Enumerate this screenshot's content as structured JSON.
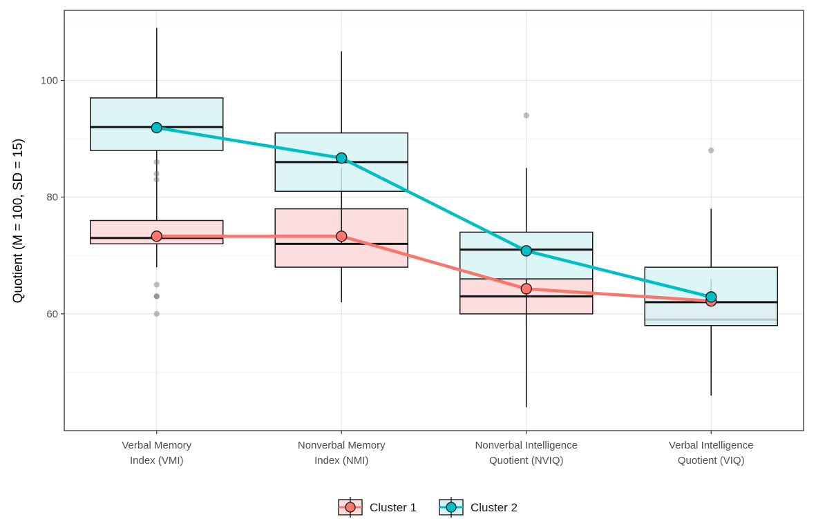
{
  "chart_data": {
    "type": "boxplot",
    "ylabel": "Quotient (M = 100, SD = 15)",
    "xlabel": "",
    "ylim": [
      40,
      112
    ],
    "yticks": [
      60,
      80,
      100
    ],
    "grid": true,
    "legend_position": "bottom",
    "categories": [
      {
        "line1": "Verbal Memory",
        "line2": "Index (VMI)"
      },
      {
        "line1": "Nonverbal Memory",
        "line2": "Index (NMI)"
      },
      {
        "line1": "Nonverbal Intelligence",
        "line2": "Quotient (NVIQ)"
      },
      {
        "line1": "Verbal Intelligence",
        "line2": "Quotient (VIQ)"
      }
    ],
    "series": [
      {
        "name": "Cluster 1",
        "color": "#F8766D",
        "fill": "#FDDCDC",
        "boxes": [
          {
            "q1": 72,
            "median": 73,
            "q3": 76,
            "whisker_low": 68,
            "whisker_high": 80,
            "outliers": [
              65,
              63,
              63,
              60
            ]
          },
          {
            "q1": 68,
            "median": 72,
            "q3": 78,
            "whisker_low": 62,
            "whisker_high": 85,
            "outliers": []
          },
          {
            "q1": 60,
            "median": 63,
            "q3": 66,
            "whisker_low": 44,
            "whisker_high": 71,
            "outliers": []
          },
          {
            "q1": 58,
            "median": 59,
            "q3": 62,
            "whisker_low": 46,
            "whisker_high": 66,
            "outliers": []
          }
        ],
        "means": [
          73.3,
          73.3,
          64.3,
          62.2
        ]
      },
      {
        "name": "Cluster 2",
        "color": "#00BFC4",
        "fill": "#D5F3F5",
        "boxes": [
          {
            "q1": 88,
            "median": 92,
            "q3": 97,
            "whisker_low": 80,
            "whisker_high": 109,
            "outliers": [
              86,
              84,
              83
            ]
          },
          {
            "q1": 81,
            "median": 86,
            "q3": 91,
            "whisker_low": 72,
            "whisker_high": 105,
            "outliers": []
          },
          {
            "q1": 66,
            "median": 71,
            "q3": 74,
            "whisker_low": 58,
            "whisker_high": 85,
            "outliers": [
              94
            ]
          },
          {
            "q1": 58,
            "median": 62,
            "q3": 68,
            "whisker_low": 50,
            "whisker_high": 78,
            "outliers": [
              88
            ]
          }
        ],
        "means": [
          91.9,
          86.7,
          70.8,
          62.9
        ]
      }
    ]
  }
}
